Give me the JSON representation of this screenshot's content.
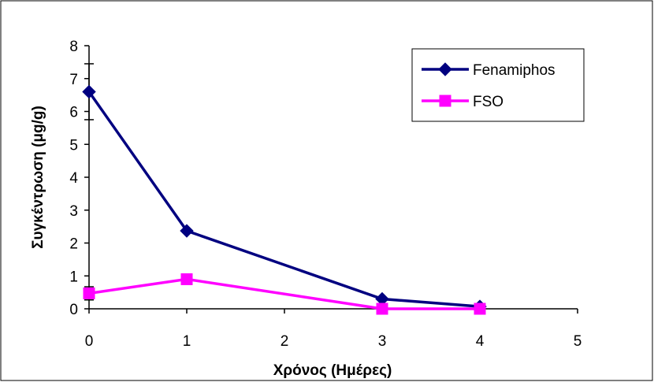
{
  "chart_data": {
    "type": "line",
    "title": "",
    "xlabel": "Χρόνος (Ημέρες)",
    "ylabel": "Συγκέντρωση (μg/g)",
    "x_ticks": [
      "0",
      "1",
      "2",
      "3",
      "4",
      "5"
    ],
    "y_ticks": [
      "0",
      "1",
      "2",
      "3",
      "4",
      "5",
      "6",
      "7",
      "8"
    ],
    "xlim": [
      0,
      5
    ],
    "ylim": [
      0,
      8
    ],
    "grid": false,
    "legend_position": "top-right",
    "series": [
      {
        "name": "Fenamiphos",
        "color": "#000080",
        "marker": "diamond",
        "x": [
          0,
          1,
          3,
          4
        ],
        "y": [
          6.6,
          2.37,
          0.3,
          0.07
        ],
        "error_bars": [
          0.85,
          0.0,
          0.0,
          0.0
        ]
      },
      {
        "name": "FSO",
        "color": "#ff00ff",
        "marker": "square",
        "x": [
          0,
          1,
          3,
          4
        ],
        "y": [
          0.47,
          0.9,
          0.0,
          0.0
        ],
        "error_bars": [
          0.2,
          0.0,
          0.0,
          0.0
        ]
      }
    ]
  }
}
